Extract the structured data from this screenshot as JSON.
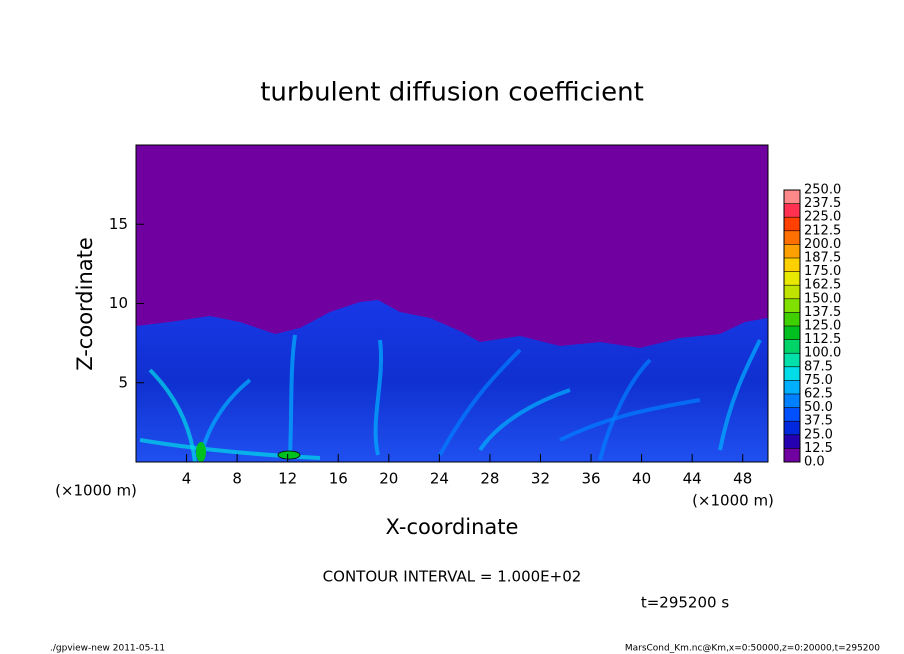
{
  "chart_data": {
    "type": "contour",
    "title": "turbulent diffusion coefficient",
    "xlabel": "X-coordinate",
    "ylabel": "Z-coordinate",
    "x_unit": "(×1000 m)",
    "xlim": [
      0,
      50
    ],
    "xticks": [
      4,
      8,
      12,
      16,
      20,
      24,
      28,
      32,
      36,
      40,
      44,
      48
    ],
    "ylim": [
      0,
      20
    ],
    "yticks": [
      5,
      10,
      15
    ],
    "contour_interval": "CONTOUR INTERVAL = 1.000E+02",
    "time": "t=295200 s",
    "footer_left": "./gpview-new  2011-05-11",
    "footer_right": "MarsCond_Km.nc@Km,x=0:50000,z=0:20000,t=295200",
    "colorbar": {
      "levels": [
        {
          "value": 0,
          "label": "0.0"
        },
        {
          "value": 12.5,
          "label": "12.5"
        },
        {
          "value": 25,
          "label": "25.0"
        },
        {
          "value": 37.5,
          "label": "37.5"
        },
        {
          "value": 50,
          "label": "50.0"
        },
        {
          "value": 62.5,
          "label": "62.5"
        },
        {
          "value": 75,
          "label": "75.0"
        },
        {
          "value": 87.5,
          "label": "87.5"
        },
        {
          "value": 100,
          "label": "100.0"
        },
        {
          "value": 112.5,
          "label": "112.5"
        },
        {
          "value": 125,
          "label": "125.0"
        },
        {
          "value": 137.5,
          "label": "137.5"
        },
        {
          "value": 150,
          "label": "150.0"
        },
        {
          "value": 162.5,
          "label": "162.5"
        },
        {
          "value": 175,
          "label": "175.0"
        },
        {
          "value": 187.5,
          "label": "187.5"
        },
        {
          "value": 200,
          "label": "200.0"
        },
        {
          "value": 212.5,
          "label": "212.5"
        },
        {
          "value": 225,
          "label": "225.0"
        },
        {
          "value": 237.5,
          "label": "237.5"
        },
        {
          "value": 250,
          "label": "250.0"
        }
      ],
      "colors": [
        "#7000a0",
        "#2400b0",
        "#0028dc",
        "#0050ff",
        "#0080ff",
        "#00b0ff",
        "#00dce8",
        "#00e0a8",
        "#00d468",
        "#00c020",
        "#40d000",
        "#80e000",
        "#c0e400",
        "#e8e800",
        "#ffd000",
        "#ffa000",
        "#ff7000",
        "#ff4000",
        "#ff3050",
        "#ff8888"
      ]
    }
  }
}
